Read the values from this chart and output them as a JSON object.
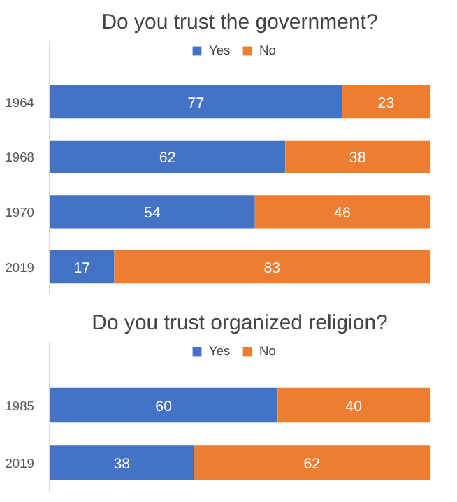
{
  "chart_data": [
    {
      "type": "bar",
      "orientation": "horizontal",
      "stacked": true,
      "title": "Do you trust the government?",
      "categories": [
        "1964",
        "1968",
        "1970",
        "2019"
      ],
      "series": [
        {
          "name": "Yes",
          "color": "#4472c4",
          "values": [
            77,
            62,
            54,
            17
          ]
        },
        {
          "name": "No",
          "color": "#ed7d31",
          "values": [
            23,
            38,
            46,
            83
          ]
        }
      ],
      "xlim": [
        0,
        100
      ],
      "data_labels": true,
      "legend": "top",
      "grid": false,
      "tick_labels": "y"
    },
    {
      "type": "bar",
      "orientation": "horizontal",
      "stacked": true,
      "title": "Do you trust organized religion?",
      "categories": [
        "1985",
        "2019"
      ],
      "series": [
        {
          "name": "Yes",
          "color": "#4472c4",
          "values": [
            60,
            38
          ]
        },
        {
          "name": "No",
          "color": "#ed7d31",
          "values": [
            40,
            62
          ]
        }
      ],
      "xlim": [
        0,
        100
      ],
      "data_labels": true,
      "legend": "top",
      "grid": false,
      "tick_labels": "y"
    }
  ]
}
